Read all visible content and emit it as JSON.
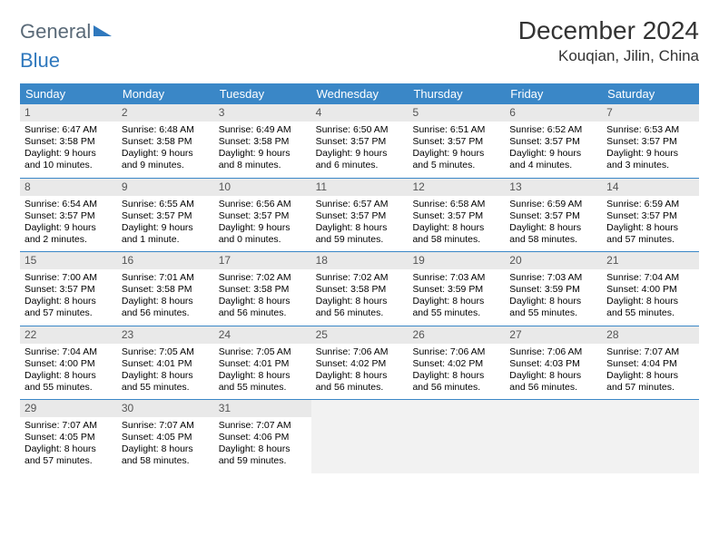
{
  "brand": {
    "part1": "General",
    "part2": "Blue"
  },
  "title": "December 2024",
  "location": "Kouqian, Jilin, China",
  "colors": {
    "header_bg": "#3a87c7",
    "header_text": "#ffffff",
    "daynum_bg": "#e9e9e9",
    "daynum_text": "#555555",
    "border": "#3a87c7",
    "logo_gray": "#5a6a78",
    "logo_blue": "#2f78bd"
  },
  "day_names": [
    "Sunday",
    "Monday",
    "Tuesday",
    "Wednesday",
    "Thursday",
    "Friday",
    "Saturday"
  ],
  "days": [
    {
      "n": 1,
      "sr": "6:47 AM",
      "ss": "3:58 PM",
      "dl": "9 hours and 10 minutes."
    },
    {
      "n": 2,
      "sr": "6:48 AM",
      "ss": "3:58 PM",
      "dl": "9 hours and 9 minutes."
    },
    {
      "n": 3,
      "sr": "6:49 AM",
      "ss": "3:58 PM",
      "dl": "9 hours and 8 minutes."
    },
    {
      "n": 4,
      "sr": "6:50 AM",
      "ss": "3:57 PM",
      "dl": "9 hours and 6 minutes."
    },
    {
      "n": 5,
      "sr": "6:51 AM",
      "ss": "3:57 PM",
      "dl": "9 hours and 5 minutes."
    },
    {
      "n": 6,
      "sr": "6:52 AM",
      "ss": "3:57 PM",
      "dl": "9 hours and 4 minutes."
    },
    {
      "n": 7,
      "sr": "6:53 AM",
      "ss": "3:57 PM",
      "dl": "9 hours and 3 minutes."
    },
    {
      "n": 8,
      "sr": "6:54 AM",
      "ss": "3:57 PM",
      "dl": "9 hours and 2 minutes."
    },
    {
      "n": 9,
      "sr": "6:55 AM",
      "ss": "3:57 PM",
      "dl": "9 hours and 1 minute."
    },
    {
      "n": 10,
      "sr": "6:56 AM",
      "ss": "3:57 PM",
      "dl": "9 hours and 0 minutes."
    },
    {
      "n": 11,
      "sr": "6:57 AM",
      "ss": "3:57 PM",
      "dl": "8 hours and 59 minutes."
    },
    {
      "n": 12,
      "sr": "6:58 AM",
      "ss": "3:57 PM",
      "dl": "8 hours and 58 minutes."
    },
    {
      "n": 13,
      "sr": "6:59 AM",
      "ss": "3:57 PM",
      "dl": "8 hours and 58 minutes."
    },
    {
      "n": 14,
      "sr": "6:59 AM",
      "ss": "3:57 PM",
      "dl": "8 hours and 57 minutes."
    },
    {
      "n": 15,
      "sr": "7:00 AM",
      "ss": "3:57 PM",
      "dl": "8 hours and 57 minutes."
    },
    {
      "n": 16,
      "sr": "7:01 AM",
      "ss": "3:58 PM",
      "dl": "8 hours and 56 minutes."
    },
    {
      "n": 17,
      "sr": "7:02 AM",
      "ss": "3:58 PM",
      "dl": "8 hours and 56 minutes."
    },
    {
      "n": 18,
      "sr": "7:02 AM",
      "ss": "3:58 PM",
      "dl": "8 hours and 56 minutes."
    },
    {
      "n": 19,
      "sr": "7:03 AM",
      "ss": "3:59 PM",
      "dl": "8 hours and 55 minutes."
    },
    {
      "n": 20,
      "sr": "7:03 AM",
      "ss": "3:59 PM",
      "dl": "8 hours and 55 minutes."
    },
    {
      "n": 21,
      "sr": "7:04 AM",
      "ss": "4:00 PM",
      "dl": "8 hours and 55 minutes."
    },
    {
      "n": 22,
      "sr": "7:04 AM",
      "ss": "4:00 PM",
      "dl": "8 hours and 55 minutes."
    },
    {
      "n": 23,
      "sr": "7:05 AM",
      "ss": "4:01 PM",
      "dl": "8 hours and 55 minutes."
    },
    {
      "n": 24,
      "sr": "7:05 AM",
      "ss": "4:01 PM",
      "dl": "8 hours and 55 minutes."
    },
    {
      "n": 25,
      "sr": "7:06 AM",
      "ss": "4:02 PM",
      "dl": "8 hours and 56 minutes."
    },
    {
      "n": 26,
      "sr": "7:06 AM",
      "ss": "4:02 PM",
      "dl": "8 hours and 56 minutes."
    },
    {
      "n": 27,
      "sr": "7:06 AM",
      "ss": "4:03 PM",
      "dl": "8 hours and 56 minutes."
    },
    {
      "n": 28,
      "sr": "7:07 AM",
      "ss": "4:04 PM",
      "dl": "8 hours and 57 minutes."
    },
    {
      "n": 29,
      "sr": "7:07 AM",
      "ss": "4:05 PM",
      "dl": "8 hours and 57 minutes."
    },
    {
      "n": 30,
      "sr": "7:07 AM",
      "ss": "4:05 PM",
      "dl": "8 hours and 58 minutes."
    },
    {
      "n": 31,
      "sr": "7:07 AM",
      "ss": "4:06 PM",
      "dl": "8 hours and 59 minutes."
    }
  ],
  "labels": {
    "sunrise": "Sunrise:",
    "sunset": "Sunset:",
    "daylight": "Daylight:"
  }
}
